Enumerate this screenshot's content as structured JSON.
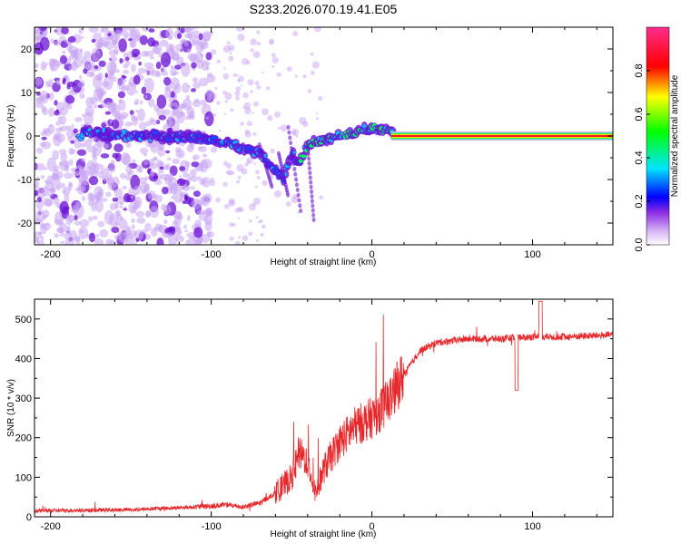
{
  "title": "S233.2026.070.19.41.E05",
  "colors": {
    "line": "#e8272b",
    "spectrogram_faint": "#c9a6f2",
    "spectrogram_dark": "#6a11d6",
    "axis": "#000000"
  },
  "chart_data": [
    {
      "type": "heatmap",
      "name": "spectrogram",
      "xlabel": "Height of straight line (km)",
      "ylabel": "Frequency (Hz)",
      "xlim": [
        -210,
        150
      ],
      "ylim": [
        -25,
        25
      ],
      "xticks": [
        -200,
        -100,
        0,
        100
      ],
      "xtick_labels": [
        "-200",
        "-100",
        "0",
        "100"
      ],
      "yticks": [
        -20,
        -10,
        0,
        10,
        20
      ],
      "ytick_labels": [
        "-20",
        "-10",
        "0",
        "10",
        "20"
      ],
      "ridge": {
        "description_points_km_hz": [
          [
            -180,
            1
          ],
          [
            -150,
            0
          ],
          [
            -120,
            0
          ],
          [
            -100,
            -1
          ],
          [
            -85,
            -2
          ],
          [
            -70,
            -4
          ],
          [
            -60,
            -8
          ],
          [
            -55,
            -10
          ],
          [
            -50,
            -4
          ],
          [
            -45,
            -6
          ],
          [
            -40,
            -2
          ],
          [
            -30,
            -1
          ],
          [
            -20,
            0
          ],
          [
            -10,
            1
          ],
          [
            0,
            2
          ],
          [
            10,
            1
          ],
          [
            15,
            0
          ],
          [
            150,
            0
          ]
        ]
      },
      "colorbar": {
        "label": "Normalized spectral amplitude",
        "range": [
          0.0,
          1.0
        ],
        "ticks": [
          0.0,
          0.2,
          0.4,
          0.6,
          0.8
        ],
        "tick_labels": [
          "0.0",
          "0.2",
          "0.4",
          "0.6",
          "0.8"
        ]
      }
    },
    {
      "type": "line",
      "name": "snr",
      "xlabel": "Height of straight line (km)",
      "ylabel": "SNR (10 * v/v)",
      "xlim": [
        -210,
        150
      ],
      "ylim": [
        0,
        550
      ],
      "xticks": [
        -200,
        -100,
        0,
        100
      ],
      "xtick_labels": [
        "-200",
        "-100",
        "0",
        "100"
      ],
      "yticks": [
        0,
        100,
        200,
        300,
        400,
        500
      ],
      "ytick_labels": [
        "0",
        "100",
        "200",
        "300",
        "400",
        "500"
      ],
      "series": [
        {
          "name": "SNR",
          "trend": [
            [
              -210,
              15
            ],
            [
              -150,
              18
            ],
            [
              -110,
              25
            ],
            [
              -90,
              30
            ],
            [
              -80,
              25
            ],
            [
              -70,
              35
            ],
            [
              -60,
              60
            ],
            [
              -50,
              100
            ],
            [
              -45,
              160
            ],
            [
              -40,
              140
            ],
            [
              -35,
              60
            ],
            [
              -30,
              120
            ],
            [
              -20,
              190
            ],
            [
              -10,
              230
            ],
            [
              0,
              250
            ],
            [
              10,
              290
            ],
            [
              20,
              360
            ],
            [
              30,
              420
            ],
            [
              40,
              440
            ],
            [
              60,
              450
            ],
            [
              80,
              450
            ],
            [
              100,
              455
            ],
            [
              120,
              455
            ],
            [
              150,
              460
            ]
          ]
        }
      ]
    }
  ]
}
